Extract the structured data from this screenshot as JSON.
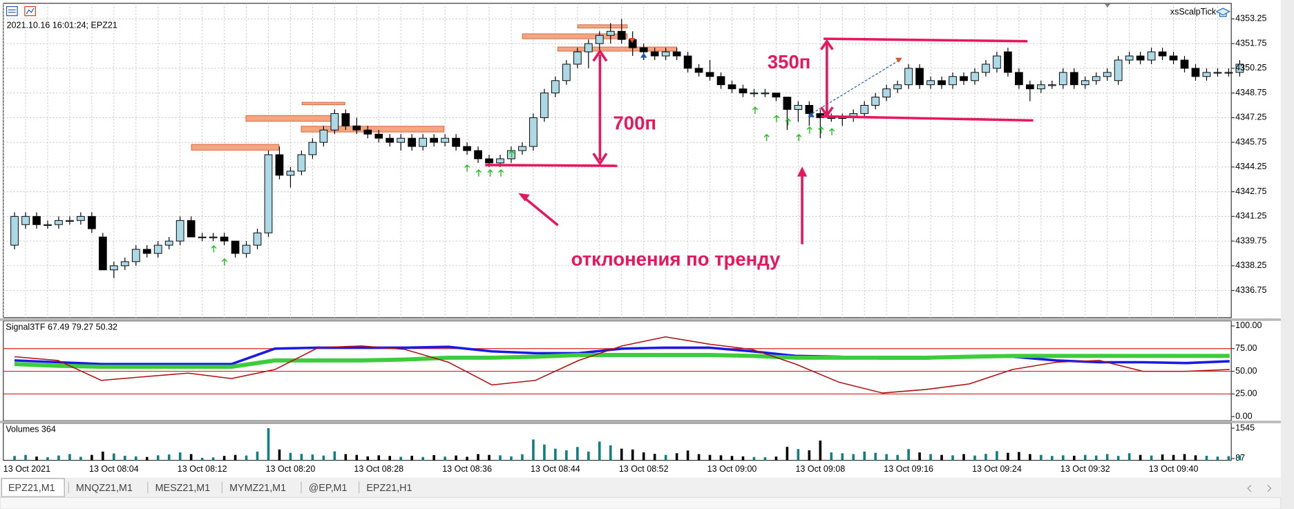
{
  "header": {
    "info": "2021.10.16 16:01:24; EPZ21",
    "expert": "xsScalpTick"
  },
  "chart_data": [
    {
      "type": "candlestick",
      "up_color": "#add8e6",
      "down_color": "#000000",
      "grid": true,
      "ylim": [
        4335.1,
        4354.2
      ],
      "yticks": [
        4353.25,
        4351.75,
        4350.25,
        4348.75,
        4347.25,
        4345.75,
        4344.25,
        4342.75,
        4341.25,
        4339.75,
        4338.25,
        4336.75
      ],
      "x_labels": [
        "13 Oct 2021",
        "13 Oct 08:04",
        "13 Oct 08:12",
        "13 Oct 08:20",
        "13 Oct 08:28",
        "13 Oct 08:36",
        "13 Oct 08:44",
        "13 Oct 08:52",
        "13 Oct 09:00",
        "13 Oct 09:08",
        "13 Oct 09:16",
        "13 Oct 09:24",
        "13 Oct 09:32",
        "13 Oct 09:40"
      ],
      "annotations": [
        "700п",
        "350п",
        "отклонения по тренду"
      ],
      "candles": [
        [
          4339.5,
          4341.5,
          4339.25,
          4341.25
        ],
        [
          4340.75,
          4341.5,
          4340.5,
          4341.25
        ],
        [
          4341.25,
          4341.5,
          4340.5,
          4340.75
        ],
        [
          4340.75,
          4341.0,
          4340.5,
          4340.75
        ],
        [
          4340.75,
          4341.25,
          4340.5,
          4341.0
        ],
        [
          4341.0,
          4341.25,
          4340.75,
          4341.0
        ],
        [
          4341.0,
          4341.5,
          4340.75,
          4341.25
        ],
        [
          4341.25,
          4341.5,
          4340.25,
          4340.5
        ],
        [
          4340.0,
          4340.25,
          4338.0,
          4338.0
        ],
        [
          4338.0,
          4338.5,
          4337.5,
          4338.25
        ],
        [
          4338.25,
          4338.75,
          4338.0,
          4338.5
        ],
        [
          4338.5,
          4339.5,
          4338.25,
          4339.25
        ],
        [
          4339.25,
          4339.5,
          4338.75,
          4339.0
        ],
        [
          4339.0,
          4339.75,
          4338.75,
          4339.5
        ],
        [
          4339.5,
          4340.0,
          4339.25,
          4339.75
        ],
        [
          4339.75,
          4341.25,
          4339.5,
          4341.0
        ],
        [
          4341.0,
          4341.25,
          4340.0,
          4340.0
        ],
        [
          4340.0,
          4340.25,
          4339.75,
          4340.0
        ],
        [
          4340.0,
          4340.25,
          4339.75,
          4340.0
        ],
        [
          4340.0,
          4340.25,
          4339.5,
          4339.75
        ],
        [
          4339.75,
          4339.75,
          4338.75,
          4339.0
        ],
        [
          4339.0,
          4339.75,
          4338.75,
          4339.5
        ],
        [
          4339.5,
          4340.5,
          4339.25,
          4340.25
        ],
        [
          4340.25,
          4345.25,
          4340.0,
          4345.0
        ],
        [
          4345.0,
          4345.5,
          4343.5,
          4343.75
        ],
        [
          4343.75,
          4344.25,
          4343.0,
          4344.0
        ],
        [
          4344.0,
          4345.25,
          4343.75,
          4345.0
        ],
        [
          4345.0,
          4346.0,
          4344.75,
          4345.75
        ],
        [
          4345.75,
          4346.75,
          4345.5,
          4346.5
        ],
        [
          4346.5,
          4347.75,
          4346.25,
          4347.5
        ],
        [
          4347.5,
          4347.75,
          4346.5,
          4346.75
        ],
        [
          4346.75,
          4347.25,
          4346.25,
          4346.5
        ],
        [
          4346.5,
          4346.75,
          4346.0,
          4346.25
        ],
        [
          4346.25,
          4346.5,
          4345.75,
          4346.0
        ],
        [
          4346.0,
          4346.25,
          4345.5,
          4345.75
        ],
        [
          4345.75,
          4346.25,
          4345.25,
          4346.0
        ],
        [
          4346.0,
          4346.25,
          4345.25,
          4345.5
        ],
        [
          4345.5,
          4346.25,
          4345.25,
          4346.0
        ],
        [
          4346.0,
          4346.25,
          4345.5,
          4345.75
        ],
        [
          4345.75,
          4346.25,
          4345.5,
          4346.0
        ],
        [
          4346.0,
          4346.25,
          4345.25,
          4345.5
        ],
        [
          4345.5,
          4345.75,
          4345.0,
          4345.25
        ],
        [
          4345.25,
          4345.5,
          4344.5,
          4344.75
        ],
        [
          4344.75,
          4345.0,
          4344.25,
          4344.5
        ],
        [
          4344.5,
          4345.0,
          4344.25,
          4344.75
        ],
        [
          4344.75,
          4345.5,
          4344.5,
          4345.25
        ],
        [
          4345.25,
          4345.75,
          4345.0,
          4345.5
        ],
        [
          4345.5,
          4347.5,
          4345.25,
          4347.25
        ],
        [
          4347.25,
          4349.0,
          4347.0,
          4348.75
        ],
        [
          4348.75,
          4349.75,
          4348.5,
          4349.5
        ],
        [
          4349.5,
          4350.75,
          4349.25,
          4350.5
        ],
        [
          4350.5,
          4351.5,
          4350.25,
          4351.25
        ],
        [
          4351.25,
          4352.0,
          4350.25,
          4351.75
        ],
        [
          4351.75,
          4352.5,
          4351.25,
          4352.25
        ],
        [
          4352.25,
          4353.0,
          4351.75,
          4352.5
        ],
        [
          4352.5,
          4353.25,
          4351.75,
          4352.0
        ],
        [
          4352.0,
          4352.5,
          4351.0,
          4351.5
        ],
        [
          4351.5,
          4351.75,
          4350.75,
          4351.25
        ],
        [
          4351.25,
          4351.5,
          4350.75,
          4351.0
        ],
        [
          4351.0,
          4351.5,
          4350.75,
          4351.25
        ],
        [
          4351.25,
          4351.5,
          4350.75,
          4351.0
        ],
        [
          4351.0,
          4351.25,
          4350.0,
          4350.25
        ],
        [
          4350.25,
          4350.5,
          4349.75,
          4350.0
        ],
        [
          4350.0,
          4350.75,
          4349.5,
          4349.75
        ],
        [
          4349.75,
          4350.0,
          4349.0,
          4349.25
        ],
        [
          4349.25,
          4349.5,
          4348.75,
          4349.0
        ],
        [
          4349.0,
          4349.25,
          4348.5,
          4348.75
        ],
        [
          4348.75,
          4349.0,
          4348.5,
          4348.75
        ],
        [
          4348.75,
          4349.0,
          4348.5,
          4348.75
        ],
        [
          4348.75,
          4348.75,
          4348.25,
          4348.5
        ],
        [
          4348.5,
          4348.5,
          4346.5,
          4347.75
        ],
        [
          4347.75,
          4348.25,
          4347.0,
          4348.0
        ],
        [
          4348.0,
          4348.25,
          4346.75,
          4347.5
        ],
        [
          4347.5,
          4347.75,
          4346.0,
          4347.25
        ],
        [
          4347.25,
          4347.5,
          4347.0,
          4347.25
        ],
        [
          4347.25,
          4347.5,
          4346.75,
          4347.25
        ],
        [
          4347.25,
          4347.75,
          4347.0,
          4347.5
        ],
        [
          4347.5,
          4348.25,
          4347.25,
          4348.0
        ],
        [
          4348.0,
          4348.75,
          4347.75,
          4348.5
        ],
        [
          4348.5,
          4349.25,
          4348.25,
          4349.0
        ],
        [
          4349.0,
          4349.5,
          4348.75,
          4349.25
        ],
        [
          4349.25,
          4350.5,
          4349.0,
          4350.25
        ],
        [
          4350.25,
          4350.5,
          4349.0,
          4349.25
        ],
        [
          4349.25,
          4349.75,
          4349.0,
          4349.5
        ],
        [
          4349.5,
          4349.75,
          4349.0,
          4349.25
        ],
        [
          4349.25,
          4350.0,
          4349.0,
          4349.75
        ],
        [
          4349.75,
          4350.0,
          4349.25,
          4349.5
        ],
        [
          4349.5,
          4350.25,
          4349.25,
          4350.0
        ],
        [
          4350.0,
          4350.75,
          4349.75,
          4350.5
        ],
        [
          4350.25,
          4351.25,
          4350.0,
          4351.0
        ],
        [
          4351.25,
          4351.5,
          4349.75,
          4350.0
        ],
        [
          4350.0,
          4350.25,
          4349.0,
          4349.25
        ],
        [
          4349.25,
          4349.5,
          4348.25,
          4349.0
        ],
        [
          4349.0,
          4349.5,
          4348.75,
          4349.25
        ],
        [
          4349.25,
          4349.5,
          4349.0,
          4349.25
        ],
        [
          4349.25,
          4350.25,
          4349.0,
          4350.0
        ],
        [
          4350.0,
          4350.25,
          4349.0,
          4349.25
        ],
        [
          4349.25,
          4349.75,
          4349.0,
          4349.5
        ],
        [
          4349.5,
          4350.0,
          4349.25,
          4349.75
        ],
        [
          4349.75,
          4350.25,
          4349.5,
          4350.0
        ],
        [
          4349.5,
          4351.0,
          4349.25,
          4350.75
        ],
        [
          4350.75,
          4351.25,
          4350.5,
          4351.0
        ],
        [
          4351.0,
          4351.25,
          4350.5,
          4350.75
        ],
        [
          4350.75,
          4351.5,
          4350.5,
          4351.25
        ],
        [
          4351.25,
          4351.5,
          4350.75,
          4351.0
        ],
        [
          4351.0,
          4351.25,
          4350.5,
          4350.75
        ],
        [
          4350.75,
          4351.0,
          4350.0,
          4350.25
        ],
        [
          4350.25,
          4350.5,
          4349.5,
          4349.75
        ],
        [
          4349.75,
          4350.25,
          4349.5,
          4350.0
        ],
        [
          4350.0,
          4350.25,
          4349.75,
          4350.0
        ],
        [
          4350.0,
          4350.25,
          4349.75,
          4350.0
        ],
        [
          4350.0,
          4350.75,
          4349.75,
          4350.5
        ]
      ]
    },
    {
      "type": "line",
      "title": "Signal3TF 67.49 79.27 50.32",
      "ylim": [
        -4.5,
        105.5
      ],
      "yticks": [
        {
          "value": 100,
          "label": "100.00"
        },
        {
          "value": 75,
          "label": "75.00"
        },
        {
          "value": 50,
          "label": "50.00"
        },
        {
          "value": 25,
          "label": "25.00"
        },
        {
          "value": 0,
          "label": "0.00"
        }
      ],
      "levels": [
        75,
        50,
        25
      ],
      "level_color": "#e02020",
      "series": [
        {
          "color": "#1a1ae6",
          "width": 3,
          "values": [
            62,
            60,
            58,
            58,
            58,
            58,
            75,
            76,
            76,
            76,
            77,
            72,
            70,
            70,
            75,
            76,
            76,
            72,
            67,
            66,
            64,
            64,
            66,
            66,
            62,
            60,
            60,
            59,
            61
          ]
        },
        {
          "color": "#3ccc3c",
          "width": 5,
          "values": [
            58,
            56,
            55,
            55,
            55,
            55,
            62,
            62,
            62,
            63,
            65,
            65,
            66,
            68,
            68,
            68,
            68,
            67,
            65,
            65,
            65,
            65,
            66,
            67,
            67,
            67,
            67,
            67,
            67
          ]
        },
        {
          "color": "#b01010",
          "width": 1.3,
          "values": [
            66,
            62,
            40,
            44,
            48,
            42,
            52,
            76,
            78,
            74,
            60,
            35,
            40,
            62,
            78,
            88,
            80,
            74,
            58,
            38,
            26,
            30,
            36,
            52,
            60,
            62,
            50,
            50,
            52
          ]
        }
      ]
    },
    {
      "type": "bar",
      "title": "Volumes 364",
      "ylim": [
        0,
        1783
      ],
      "yticks": [
        1545,
        87
      ],
      "up_color": "#0f7f7f",
      "down_color": "#000000",
      "values": [
        210,
        260,
        180,
        150,
        230,
        300,
        170,
        260,
        420,
        330,
        220,
        190,
        160,
        240,
        280,
        380,
        300,
        120,
        140,
        210,
        260,
        230,
        420,
        1545,
        520,
        360,
        310,
        280,
        230,
        430,
        300,
        260,
        190,
        240,
        210,
        170,
        220,
        160,
        250,
        180,
        230,
        170,
        300,
        260,
        240,
        190,
        290,
        1000,
        760,
        560,
        480,
        640,
        420,
        900,
        720,
        560,
        520,
        380,
        310,
        260,
        340,
        470,
        300,
        260,
        240,
        210,
        190,
        160,
        150,
        180,
        650,
        540,
        480,
        950,
        380,
        340,
        300,
        420,
        360,
        300,
        260,
        540,
        380,
        300,
        260,
        240,
        300,
        230,
        310,
        440,
        360,
        400,
        300,
        260,
        210,
        240,
        220,
        260,
        230,
        300,
        210,
        340,
        260,
        230,
        280,
        260,
        300,
        240,
        220,
        180,
        200,
        230
      ]
    }
  ],
  "tabs": [
    "EPZ21,M1",
    "MNQZ21,M1",
    "MESZ21,M1",
    "MYMZ21,M1",
    "@EP,M1",
    "EPZ21,H1"
  ]
}
